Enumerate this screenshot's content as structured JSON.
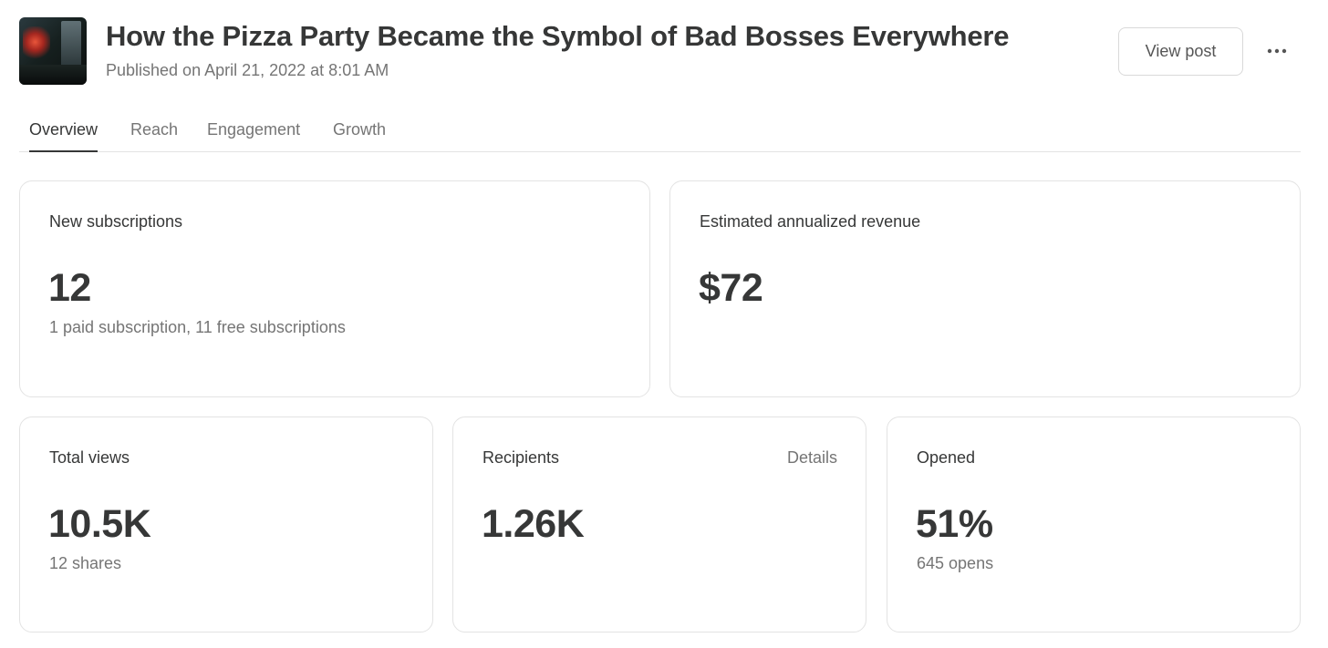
{
  "post": {
    "title": "How the Pizza Party Became the Symbol of Bad Bosses Everywhere",
    "published": "Published on April 21, 2022 at 8:01 AM",
    "thumbnail_icon": "post-thumbnail-image"
  },
  "actions": {
    "view_post_label": "View post",
    "more_icon": "more-horizontal-icon"
  },
  "tabs": [
    {
      "label": "Overview",
      "active": true
    },
    {
      "label": "Reach",
      "active": false
    },
    {
      "label": "Engagement",
      "active": false
    },
    {
      "label": "Growth",
      "active": false
    }
  ],
  "cards": {
    "new_subscriptions": {
      "label": "New subscriptions",
      "value": "12",
      "sub": "1 paid subscription, 11 free subscriptions"
    },
    "revenue": {
      "label": "Estimated annualized revenue",
      "value": "$72"
    },
    "total_views": {
      "label": "Total views",
      "value": "10.5K",
      "sub": "12 shares"
    },
    "recipients": {
      "label": "Recipients",
      "value": "1.26K",
      "details_label": "Details"
    },
    "opened": {
      "label": "Opened",
      "value": "51%",
      "sub": "645 opens"
    }
  },
  "colors": {
    "text_primary": "#363737",
    "text_secondary": "#757575",
    "border": "#e3e3e3"
  }
}
